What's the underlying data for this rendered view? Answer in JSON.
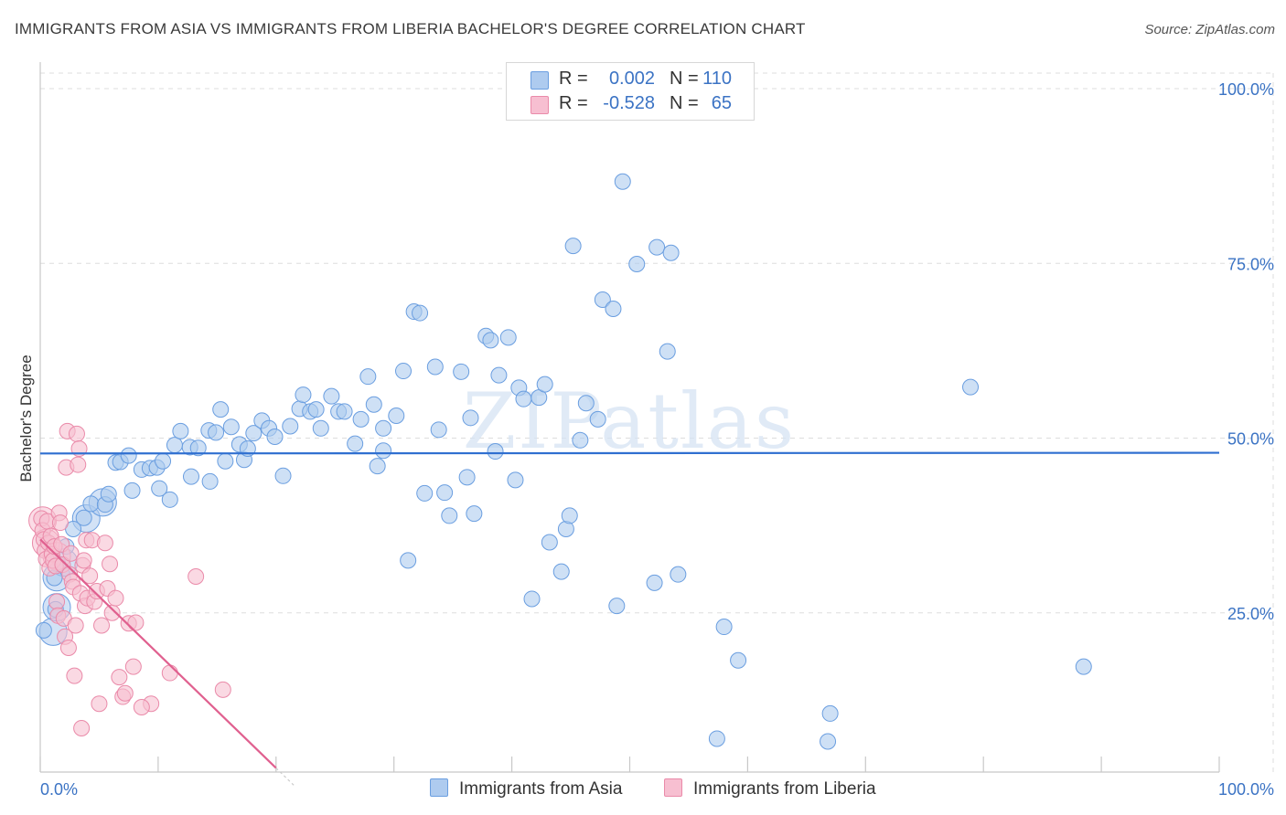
{
  "title": "IMMIGRANTS FROM ASIA VS IMMIGRANTS FROM LIBERIA BACHELOR'S DEGREE CORRELATION CHART",
  "source": "Source: ZipAtlas.com",
  "watermark": "ZIPatlas",
  "colors": {
    "blue_fill": "#aecbef",
    "blue_stroke": "#6a9ee0",
    "blue_line": "#2f6fd0",
    "pink_fill": "#f7bfd1",
    "pink_stroke": "#ea8aa9",
    "pink_line": "#e0608f",
    "axis_text": "#3b73c4",
    "grid": "#dddddd"
  },
  "legend": {
    "rows": [
      {
        "series": "asia",
        "r_label": "R =",
        "r_value": "0.002",
        "n_label": "N =",
        "n_value": "110"
      },
      {
        "series": "liberia",
        "r_label": "R =",
        "r_value": "-0.528",
        "n_label": "N =",
        "n_value": "65"
      }
    ]
  },
  "chart_data": {
    "type": "scatter",
    "title": "IMMIGRANTS FROM ASIA VS IMMIGRANTS FROM LIBERIA BACHELOR'S DEGREE CORRELATION CHART",
    "xlabel": "",
    "ylabel": "Bachelor's Degree",
    "xlim": [
      0,
      100
    ],
    "ylim": [
      0,
      100
    ],
    "x_tick_labels": [
      "0.0%",
      "100.0%"
    ],
    "y_tick_labels": [
      "25.0%",
      "50.0%",
      "75.0%",
      "100.0%"
    ],
    "y_tick_values": [
      25,
      50,
      75,
      100
    ],
    "series": [
      {
        "name": "Immigrants from Asia",
        "key": "asia",
        "trend": {
          "x": [
            0,
            100
          ],
          "y": [
            47.8,
            47.9
          ]
        },
        "points": [
          [
            0.3,
            22.5
          ],
          [
            1.2,
            30
          ],
          [
            1.3,
            25.5
          ],
          [
            1.5,
            32
          ],
          [
            2.2,
            34.5
          ],
          [
            2.8,
            37
          ],
          [
            3.7,
            38.6
          ],
          [
            4.3,
            40.6
          ],
          [
            5.5,
            40.5
          ],
          [
            5.8,
            42
          ],
          [
            6.4,
            46.5
          ],
          [
            6.8,
            46.6
          ],
          [
            7.5,
            47.5
          ],
          [
            7.8,
            42.5
          ],
          [
            8.6,
            45.5
          ],
          [
            9.3,
            45.7
          ],
          [
            9.9,
            45.8
          ],
          [
            10.1,
            42.8
          ],
          [
            10.4,
            46.7
          ],
          [
            11,
            41.2
          ],
          [
            11.4,
            49
          ],
          [
            11.9,
            51
          ],
          [
            12.7,
            48.7
          ],
          [
            12.8,
            44.5
          ],
          [
            13.4,
            48.6
          ],
          [
            14.3,
            51.1
          ],
          [
            14.4,
            43.8
          ],
          [
            14.9,
            50.8
          ],
          [
            15.3,
            54.1
          ],
          [
            15.7,
            46.7
          ],
          [
            16.2,
            51.6
          ],
          [
            16.9,
            49.1
          ],
          [
            17.3,
            46.9
          ],
          [
            17.6,
            48.5
          ],
          [
            18.1,
            50.7
          ],
          [
            18.8,
            52.5
          ],
          [
            19.4,
            51.4
          ],
          [
            19.9,
            50.2
          ],
          [
            20.6,
            44.6
          ],
          [
            21.2,
            51.7
          ],
          [
            22,
            54.2
          ],
          [
            22.3,
            56.2
          ],
          [
            22.9,
            53.8
          ],
          [
            23.4,
            54.1
          ],
          [
            23.8,
            51.4
          ],
          [
            24.7,
            56
          ],
          [
            25.3,
            53.8
          ],
          [
            25.8,
            53.8
          ],
          [
            26.7,
            49.2
          ],
          [
            27.2,
            52.7
          ],
          [
            27.8,
            58.8
          ],
          [
            28.3,
            54.8
          ],
          [
            28.6,
            46
          ],
          [
            29.1,
            51.4
          ],
          [
            29.1,
            48.2
          ],
          [
            30.2,
            53.2
          ],
          [
            30.8,
            59.6
          ],
          [
            31.2,
            32.5
          ],
          [
            31.7,
            68.1
          ],
          [
            32.2,
            67.9
          ],
          [
            32.6,
            42.1
          ],
          [
            33.5,
            60.2
          ],
          [
            33.8,
            51.2
          ],
          [
            34.3,
            42.2
          ],
          [
            34.7,
            38.9
          ],
          [
            35.7,
            59.5
          ],
          [
            36.2,
            44.4
          ],
          [
            36.5,
            52.9
          ],
          [
            36.8,
            39.2
          ],
          [
            37.8,
            64.6
          ],
          [
            38.2,
            64
          ],
          [
            38.6,
            48.1
          ],
          [
            38.9,
            59
          ],
          [
            39.7,
            64.4
          ],
          [
            40.3,
            44
          ],
          [
            40.6,
            57.2
          ],
          [
            41,
            55.6
          ],
          [
            41.7,
            27
          ],
          [
            42.3,
            55.8
          ],
          [
            42.8,
            57.7
          ],
          [
            43.2,
            35.1
          ],
          [
            44.2,
            30.9
          ],
          [
            44.6,
            37
          ],
          [
            44.9,
            38.9
          ],
          [
            45.2,
            77.5
          ],
          [
            45.8,
            49.7
          ],
          [
            46.3,
            55
          ],
          [
            47.3,
            52.7
          ],
          [
            47.7,
            69.8
          ],
          [
            48.6,
            68.5
          ],
          [
            48.9,
            26
          ],
          [
            49.4,
            86.7
          ],
          [
            50.6,
            74.9
          ],
          [
            52.1,
            29.3
          ],
          [
            52.3,
            77.3
          ],
          [
            53.2,
            62.4
          ],
          [
            53.5,
            76.5
          ],
          [
            54.1,
            30.5
          ],
          [
            57.4,
            7
          ],
          [
            58,
            23
          ],
          [
            59.2,
            18.2
          ],
          [
            66.8,
            6.6
          ],
          [
            67,
            10.6
          ],
          [
            78.9,
            57.3
          ],
          [
            88.5,
            17.3
          ]
        ],
        "large_points": [
          [
            1.1,
            22.3
          ],
          [
            1.4,
            30.1
          ],
          [
            1.4,
            25.8
          ],
          [
            2,
            32.2
          ],
          [
            3.9,
            38.5
          ],
          [
            5.3,
            40.8
          ]
        ]
      },
      {
        "name": "Immigrants from Liberia",
        "key": "liberia",
        "trend": {
          "x": [
            0,
            20
          ],
          "y": [
            35.5,
            2.8
          ]
        },
        "points": [
          [
            0.1,
            38.5
          ],
          [
            0.2,
            36.8
          ],
          [
            0.3,
            35.5
          ],
          [
            0.4,
            33.9
          ],
          [
            0.5,
            32.7
          ],
          [
            0.6,
            38.1
          ],
          [
            0.7,
            35
          ],
          [
            0.8,
            31.4
          ],
          [
            0.9,
            36
          ],
          [
            1,
            33.4
          ],
          [
            1.1,
            32.5
          ],
          [
            1.2,
            34.5
          ],
          [
            1.3,
            31.7
          ],
          [
            1.4,
            26.6
          ],
          [
            1.5,
            24.6
          ],
          [
            1.6,
            39.3
          ],
          [
            1.7,
            37.9
          ],
          [
            1.8,
            34.8
          ],
          [
            1.9,
            31.9
          ],
          [
            2,
            24.2
          ],
          [
            2.1,
            21.6
          ],
          [
            2.2,
            45.8
          ],
          [
            2.3,
            51
          ],
          [
            2.4,
            20
          ],
          [
            2.5,
            30.5
          ],
          [
            2.6,
            33.5
          ],
          [
            2.7,
            29.5
          ],
          [
            2.8,
            28.7
          ],
          [
            2.9,
            16
          ],
          [
            3,
            23.2
          ],
          [
            3.1,
            50.6
          ],
          [
            3.2,
            46.2
          ],
          [
            3.3,
            48.5
          ],
          [
            3.4,
            27.8
          ],
          [
            3.5,
            8.5
          ],
          [
            3.6,
            31.8
          ],
          [
            3.7,
            32.5
          ],
          [
            3.8,
            26
          ],
          [
            3.9,
            35.4
          ],
          [
            4,
            27.1
          ],
          [
            4.2,
            30.3
          ],
          [
            4.4,
            35.4
          ],
          [
            4.6,
            26.6
          ],
          [
            4.8,
            28.1
          ],
          [
            5,
            12
          ],
          [
            5.2,
            23.2
          ],
          [
            5.5,
            35
          ],
          [
            5.7,
            28.5
          ],
          [
            5.9,
            32
          ],
          [
            6.1,
            25
          ],
          [
            6.4,
            27.1
          ],
          [
            6.7,
            15.8
          ],
          [
            7,
            13
          ],
          [
            7.2,
            13.5
          ],
          [
            7.5,
            23.5
          ],
          [
            7.9,
            17.3
          ],
          [
            8.1,
            23.6
          ],
          [
            9.4,
            12
          ],
          [
            11,
            16.4
          ],
          [
            13.2,
            30.2
          ],
          [
            15.5,
            14
          ],
          [
            8.6,
            11.5
          ]
        ],
        "large_points": [
          [
            0.2,
            38.2
          ],
          [
            0.5,
            35
          ],
          [
            1.4,
            33.1
          ]
        ]
      }
    ]
  },
  "bottom_legend": {
    "asia_label": "Immigrants from Asia",
    "liberia_label": "Immigrants from Liberia"
  }
}
